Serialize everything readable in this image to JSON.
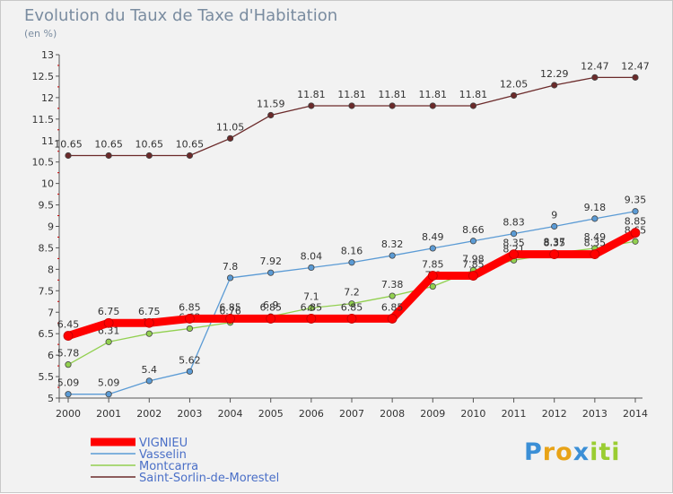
{
  "chart_data": {
    "type": "line",
    "title": "Evolution du Taux de Taxe d'Habitation",
    "ylabel": "(en %)",
    "ylim": [
      5,
      13
    ],
    "yticks": [
      5,
      5.5,
      6,
      6.5,
      7,
      7.5,
      8,
      8.5,
      9,
      9.5,
      10,
      10.5,
      11,
      11.5,
      12,
      12.5,
      13
    ],
    "x": [
      "2000",
      "2001",
      "2002",
      "2003",
      "2004",
      "2005",
      "2006",
      "2007",
      "2008",
      "2009",
      "2010",
      "2011",
      "2012",
      "2013",
      "2014"
    ],
    "grid": false,
    "legend_position": "bottom-left",
    "series": [
      {
        "name": "Saint-Sorlin-de-Morestel",
        "color": "#6b2a2a",
        "values": [
          10.65,
          10.65,
          10.65,
          10.65,
          11.05,
          11.59,
          11.81,
          11.81,
          11.81,
          11.81,
          11.81,
          12.05,
          12.29,
          12.47,
          12.47
        ],
        "labels": [
          "10.65",
          "10.65",
          "10.65",
          "10.65",
          "11.05",
          "11.59",
          "11.81",
          "11.81",
          "11.81",
          "11.81",
          "11.81",
          "12.05",
          "12.29",
          "12.47",
          "12.47"
        ]
      },
      {
        "name": "Vasselin",
        "color": "#5b9bd5",
        "values": [
          5.09,
          5.09,
          5.4,
          5.62,
          7.8,
          7.92,
          8.04,
          8.16,
          8.32,
          8.49,
          8.66,
          8.83,
          9,
          9.18,
          9.35
        ],
        "labels": [
          "5.09",
          "5.09",
          "5.4",
          "5.62",
          "7.8",
          "7.92",
          "8.04",
          "8.16",
          "8.32",
          "8.49",
          "8.66",
          "8.83",
          "9",
          "9.18",
          "9.35"
        ]
      },
      {
        "name": "Montcarra",
        "color": "#92d050",
        "values": [
          5.78,
          6.31,
          6.5,
          6.62,
          6.76,
          6.9,
          7.1,
          7.2,
          7.38,
          7.6,
          7.98,
          8.21,
          8.37,
          8.49,
          8.65
        ],
        "labels": [
          "5.78",
          "6.31",
          "6.5",
          "6.62",
          "6.76",
          "6.9",
          "7.1",
          "7.2",
          "7.38",
          "7.6",
          "7.98",
          "8.21",
          "8.37",
          "8.49",
          "8.65"
        ]
      },
      {
        "name": "VIGNIEU",
        "color": "#ff0000",
        "values": [
          6.45,
          6.75,
          6.75,
          6.85,
          6.85,
          6.85,
          6.85,
          6.85,
          6.85,
          7.85,
          7.85,
          8.35,
          8.35,
          8.35,
          8.85
        ],
        "labels": [
          "6.45",
          "6.75",
          "6.75",
          "6.85",
          "6.85",
          "6.85",
          "6.85",
          "6.85",
          "6.85",
          "7.85",
          "7.85",
          "8.35",
          "8.35",
          "8.35",
          "8.85"
        ]
      }
    ],
    "legend": [
      "VIGNIEU",
      "Vasselin",
      "Montcarra",
      "Saint-Sorlin-de-Morestel"
    ]
  },
  "logo": {
    "letters": [
      "P",
      "r",
      "o",
      "x",
      "i",
      "t",
      "i"
    ],
    "colors": [
      "#3b8fd6",
      "#e8a317",
      "#e8a317",
      "#3b8fd6",
      "#9acd32",
      "#9acd32",
      "#9acd32"
    ]
  }
}
